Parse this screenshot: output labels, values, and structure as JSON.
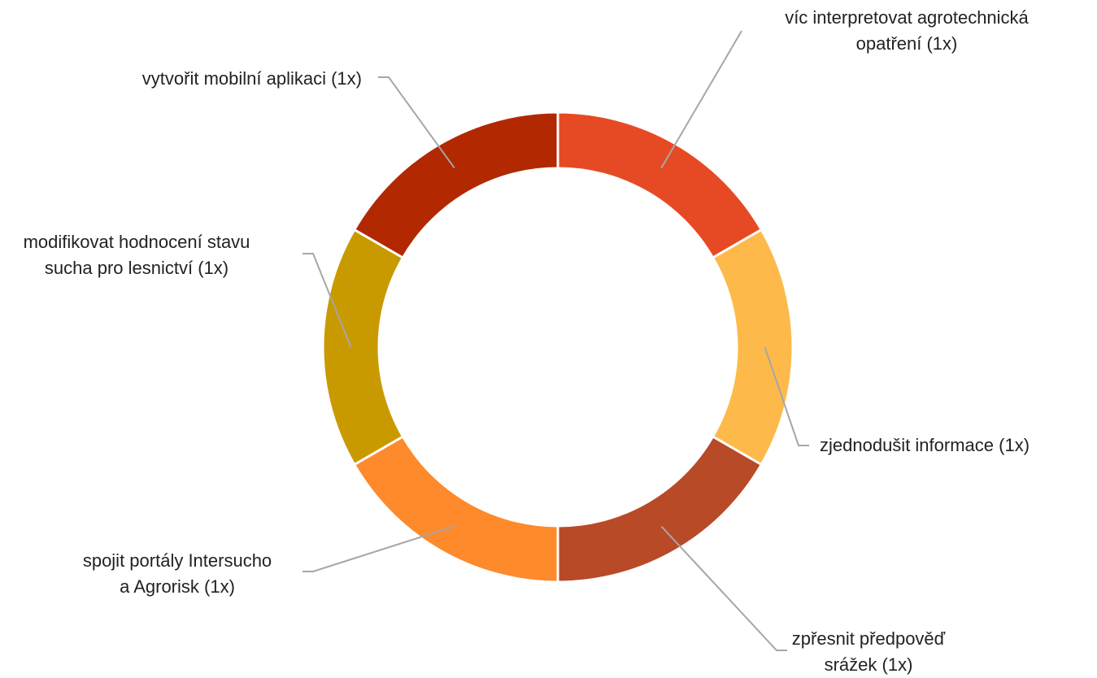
{
  "chart_data": {
    "type": "donut",
    "categories": [
      "víc interpretovat agrotechnická opatření",
      "zjednodušit informace",
      "zpřesnit předpověď srážek",
      "spojit portály Intersucho a Agrorisk",
      "modifikovat hodnocení stavu sucha pro lesnictví",
      "vytvořit mobilní aplikaci"
    ],
    "values": [
      1,
      1,
      1,
      1,
      1,
      1
    ],
    "value_labels": [
      "(1x)",
      "(1x)",
      "(1x)",
      "(1x)",
      "(1x)",
      "(1x)"
    ],
    "colors": [
      "#e64a24",
      "#fdba4a",
      "#b84a27",
      "#fe8a2c",
      "#c99a00",
      "#b22800"
    ]
  }
}
